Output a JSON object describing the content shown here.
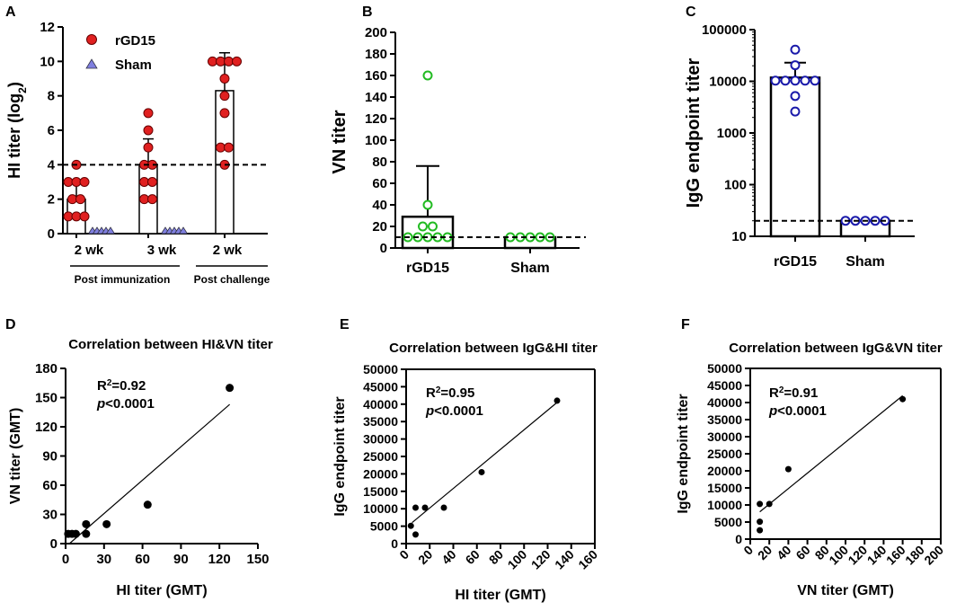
{
  "chart_data": [
    {
      "panel": "A",
      "type": "bar",
      "ylabel": "HI  titer (log",
      "ylabel_sub": "2",
      "ylim": [
        0,
        12
      ],
      "yticks": [
        0,
        2,
        4,
        6,
        8,
        10,
        12
      ],
      "threshold": 4,
      "legend": [
        {
          "label": "rGD15",
          "color": "#e02020",
          "marker": "circle"
        },
        {
          "label": "Sham",
          "color": "#7f7fdf",
          "marker": "triangle"
        }
      ],
      "groups": [
        {
          "tick": "2 wk",
          "rGD15": {
            "mean": 2.0,
            "sd": 1.1,
            "points": [
              1,
              1,
              1,
              2,
              2,
              3,
              3,
              3,
              4
            ]
          },
          "sham": [
            0,
            0,
            0,
            0,
            0
          ]
        },
        {
          "tick": "3 wk",
          "rGD15": {
            "mean": 3.9,
            "sd": 1.6,
            "points": [
              2,
              2,
              3,
              3,
              4,
              4,
              5,
              6,
              7
            ]
          },
          "sham": [
            0,
            0,
            0,
            0,
            0
          ]
        },
        {
          "tick": "2 wk",
          "rGD15": {
            "mean": 8.3,
            "sd": 2.2,
            "points": [
              4,
              5,
              5,
              7,
              8,
              9,
              10,
              10,
              10,
              10
            ]
          },
          "sham": []
        }
      ],
      "group_labels": [
        "Post immunization",
        "Post challenge"
      ]
    },
    {
      "panel": "B",
      "type": "bar",
      "ylabel": "VN titer",
      "ylim": [
        0,
        200
      ],
      "yticks": [
        0,
        20,
        40,
        60,
        80,
        100,
        120,
        140,
        160,
        180,
        200
      ],
      "threshold": 10,
      "categories": [
        "rGD15",
        "Sham"
      ],
      "series": [
        {
          "name": "rGD15",
          "mean": 29,
          "sd": 47,
          "points": [
            160,
            40,
            20,
            20,
            10,
            10,
            10,
            10,
            10
          ],
          "color": "#22bb22"
        },
        {
          "name": "Sham",
          "mean": 10,
          "sd": 0,
          "points": [
            10,
            10,
            10,
            10,
            10
          ],
          "color": "#22bb22"
        }
      ]
    },
    {
      "panel": "C",
      "type": "bar",
      "scale": "log",
      "ylabel": "IgG endpoint titer",
      "ylim": [
        10,
        100000
      ],
      "yticks": [
        "10",
        "100",
        "1000",
        "10000",
        "100000"
      ],
      "threshold": 20,
      "categories": [
        "rGD15",
        "Sham"
      ],
      "series": [
        {
          "name": "rGD15",
          "mean": 11800,
          "upper": 23000,
          "points": [
            41000,
            20500,
            10300,
            10300,
            10300,
            10300,
            10300,
            5200,
            2600
          ],
          "color": "#1a1aaa"
        },
        {
          "name": "Sham",
          "mean": 20,
          "upper": 20,
          "points": [
            20,
            20,
            20,
            20,
            20
          ],
          "color": "#1a1aaa"
        }
      ]
    },
    {
      "panel": "D",
      "type": "scatter",
      "title": "Correlation between HI&VN titer",
      "xlabel": "HI titer (GMT)",
      "ylabel": "VN titer (GMT)",
      "xlim": [
        0,
        150
      ],
      "ylim": [
        0,
        180
      ],
      "xticks": [
        0,
        30,
        60,
        90,
        120,
        150
      ],
      "yticks": [
        0,
        30,
        60,
        90,
        120,
        150,
        180
      ],
      "stat_r2_prefix": "R",
      "stat_r2_sup": "2",
      "stat_r2_value": "=0.92",
      "stat_p_italic": "p",
      "stat_p_value": "<0.0001",
      "points": [
        [
          2,
          10
        ],
        [
          5,
          10
        ],
        [
          8,
          10
        ],
        [
          16,
          10
        ],
        [
          16,
          20
        ],
        [
          32,
          20
        ],
        [
          64,
          40
        ],
        [
          128,
          160
        ]
      ],
      "fit": [
        [
          3,
          0
        ],
        [
          128,
          143
        ]
      ]
    },
    {
      "panel": "E",
      "type": "scatter",
      "title": "Correlation between IgG&HI titer",
      "xlabel": "HI titer (GMT)",
      "ylabel": "IgG endpoint titer",
      "xlim": [
        0,
        160
      ],
      "ylim": [
        0,
        50000
      ],
      "xticks": [
        0,
        20,
        40,
        60,
        80,
        100,
        120,
        140,
        160
      ],
      "yticks": [
        0,
        5000,
        10000,
        15000,
        20000,
        25000,
        30000,
        35000,
        40000,
        45000,
        50000
      ],
      "stat_r2_prefix": "R",
      "stat_r2_sup": "2",
      "stat_r2_value": "=0.95",
      "stat_p_italic": "p",
      "stat_p_value": "<0.0001",
      "points": [
        [
          4,
          5100
        ],
        [
          8,
          2600
        ],
        [
          8,
          10300
        ],
        [
          16,
          10300
        ],
        [
          32,
          10300
        ],
        [
          64,
          20500
        ],
        [
          128,
          41000
        ]
      ],
      "fit": [
        [
          5,
          6000
        ],
        [
          128,
          40500
        ]
      ]
    },
    {
      "panel": "F",
      "type": "scatter",
      "title": "Correlation between IgG&VN titer",
      "xlabel": "VN titer (GMT)",
      "ylabel": "IgG endpoint titer",
      "xlim": [
        0,
        200
      ],
      "ylim": [
        0,
        50000
      ],
      "xticks": [
        0,
        20,
        40,
        60,
        80,
        100,
        120,
        140,
        160,
        180,
        200
      ],
      "yticks": [
        0,
        5000,
        10000,
        15000,
        20000,
        25000,
        30000,
        35000,
        40000,
        45000,
        50000
      ],
      "stat_r2_prefix": "R",
      "stat_r2_sup": "2",
      "stat_r2_value": "=0.91",
      "stat_p_italic": "p",
      "stat_p_value": "<0.0001",
      "points": [
        [
          10,
          2600
        ],
        [
          10,
          5100
        ],
        [
          10,
          10300
        ],
        [
          20,
          10300
        ],
        [
          40,
          20500
        ],
        [
          160,
          41000
        ]
      ],
      "fit": [
        [
          10,
          8000
        ],
        [
          160,
          42000
        ]
      ]
    }
  ]
}
